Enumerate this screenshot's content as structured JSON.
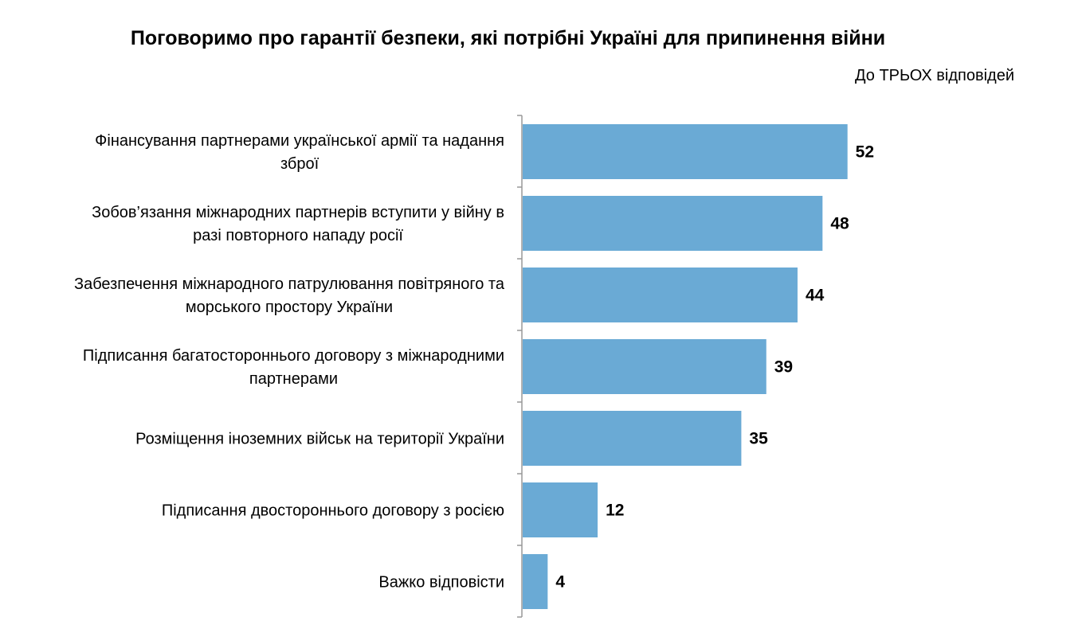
{
  "chart_data": {
    "type": "bar",
    "orientation": "horizontal",
    "title": "Поговоримо про гарантії безпеки, які потрібні Україні для припинення війни",
    "subtitle": "До ТРЬОХ відповідей",
    "categories": [
      [
        "Фінансування партнерами української армії та надання",
        "зброї"
      ],
      [
        "Зобов’язання міжнародних партнерів вступити у війну в",
        "разі повторного нападу росії"
      ],
      [
        "Забезпечення міжнародного патрулювання повітряного та",
        "морського простору України"
      ],
      [
        "Підписання багатостороннього договору з міжнародними",
        "партнерами"
      ],
      [
        "Розміщення іноземних військ на території України"
      ],
      [
        "Підписання двостороннього договору з росією"
      ],
      [
        "Важко відповісти"
      ]
    ],
    "values": [
      52,
      48,
      44,
      39,
      35,
      12,
      4
    ],
    "bar_color": "#6aaad5",
    "axis_color": "#999999",
    "grid": false
  }
}
